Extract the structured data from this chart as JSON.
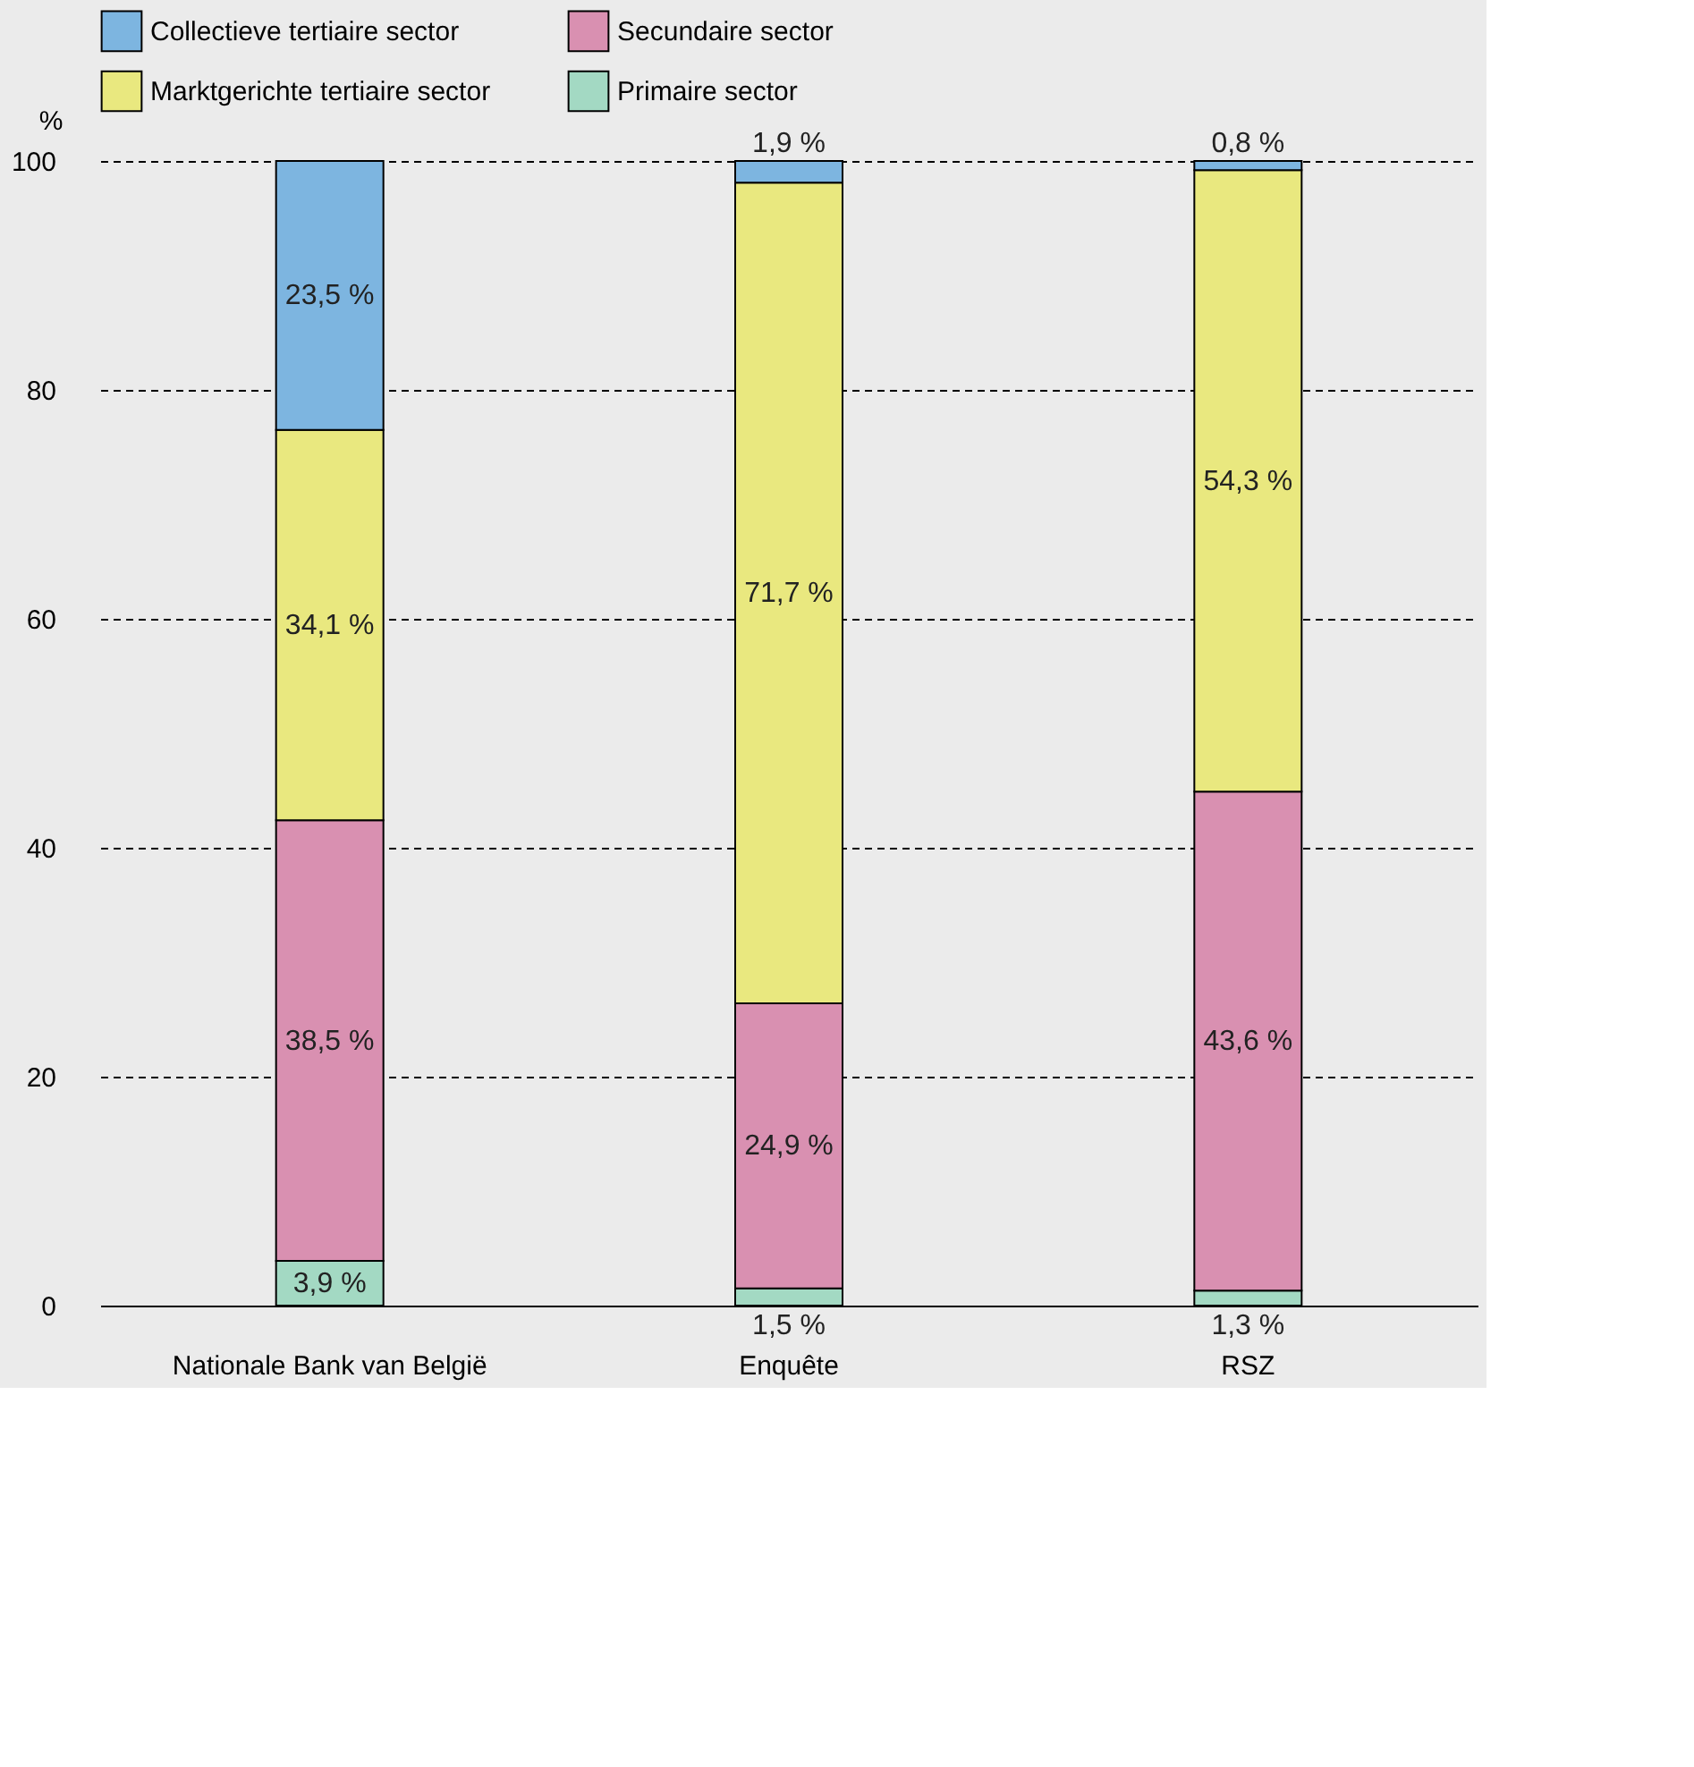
{
  "chart_data": {
    "type": "bar",
    "stacked": true,
    "ylabel": "%",
    "categories": [
      "Nationale Bank van België",
      "Enquête",
      "RSZ"
    ],
    "series": [
      {
        "name": "Primaire sector",
        "color": "#a3d9c3",
        "values": [
          3.9,
          1.5,
          1.3
        ],
        "value_labels": [
          "3,9 %",
          "1,5 %",
          "1,3 %"
        ]
      },
      {
        "name": "Secundaire sector",
        "color": "#d990b1",
        "values": [
          38.5,
          24.9,
          43.6
        ],
        "value_labels": [
          "38,5 %",
          "24,9 %",
          "43,6 %"
        ]
      },
      {
        "name": "Marktgerichte tertiaire sector",
        "color": "#e9e87f",
        "values": [
          34.1,
          71.7,
          54.3
        ],
        "value_labels": [
          "34,1 %",
          "71,7 %",
          "54,3 %"
        ]
      },
      {
        "name": "Collectieve tertiaire sector",
        "color": "#7db5e0",
        "values": [
          23.5,
          1.9,
          0.8
        ],
        "value_labels": [
          "23,5 %",
          "1,9 %",
          "0,8 %"
        ]
      }
    ],
    "ylim": [
      0,
      100
    ],
    "yticks": [
      0,
      20,
      40,
      60,
      80,
      100
    ],
    "grid": "y",
    "legend": "top"
  }
}
